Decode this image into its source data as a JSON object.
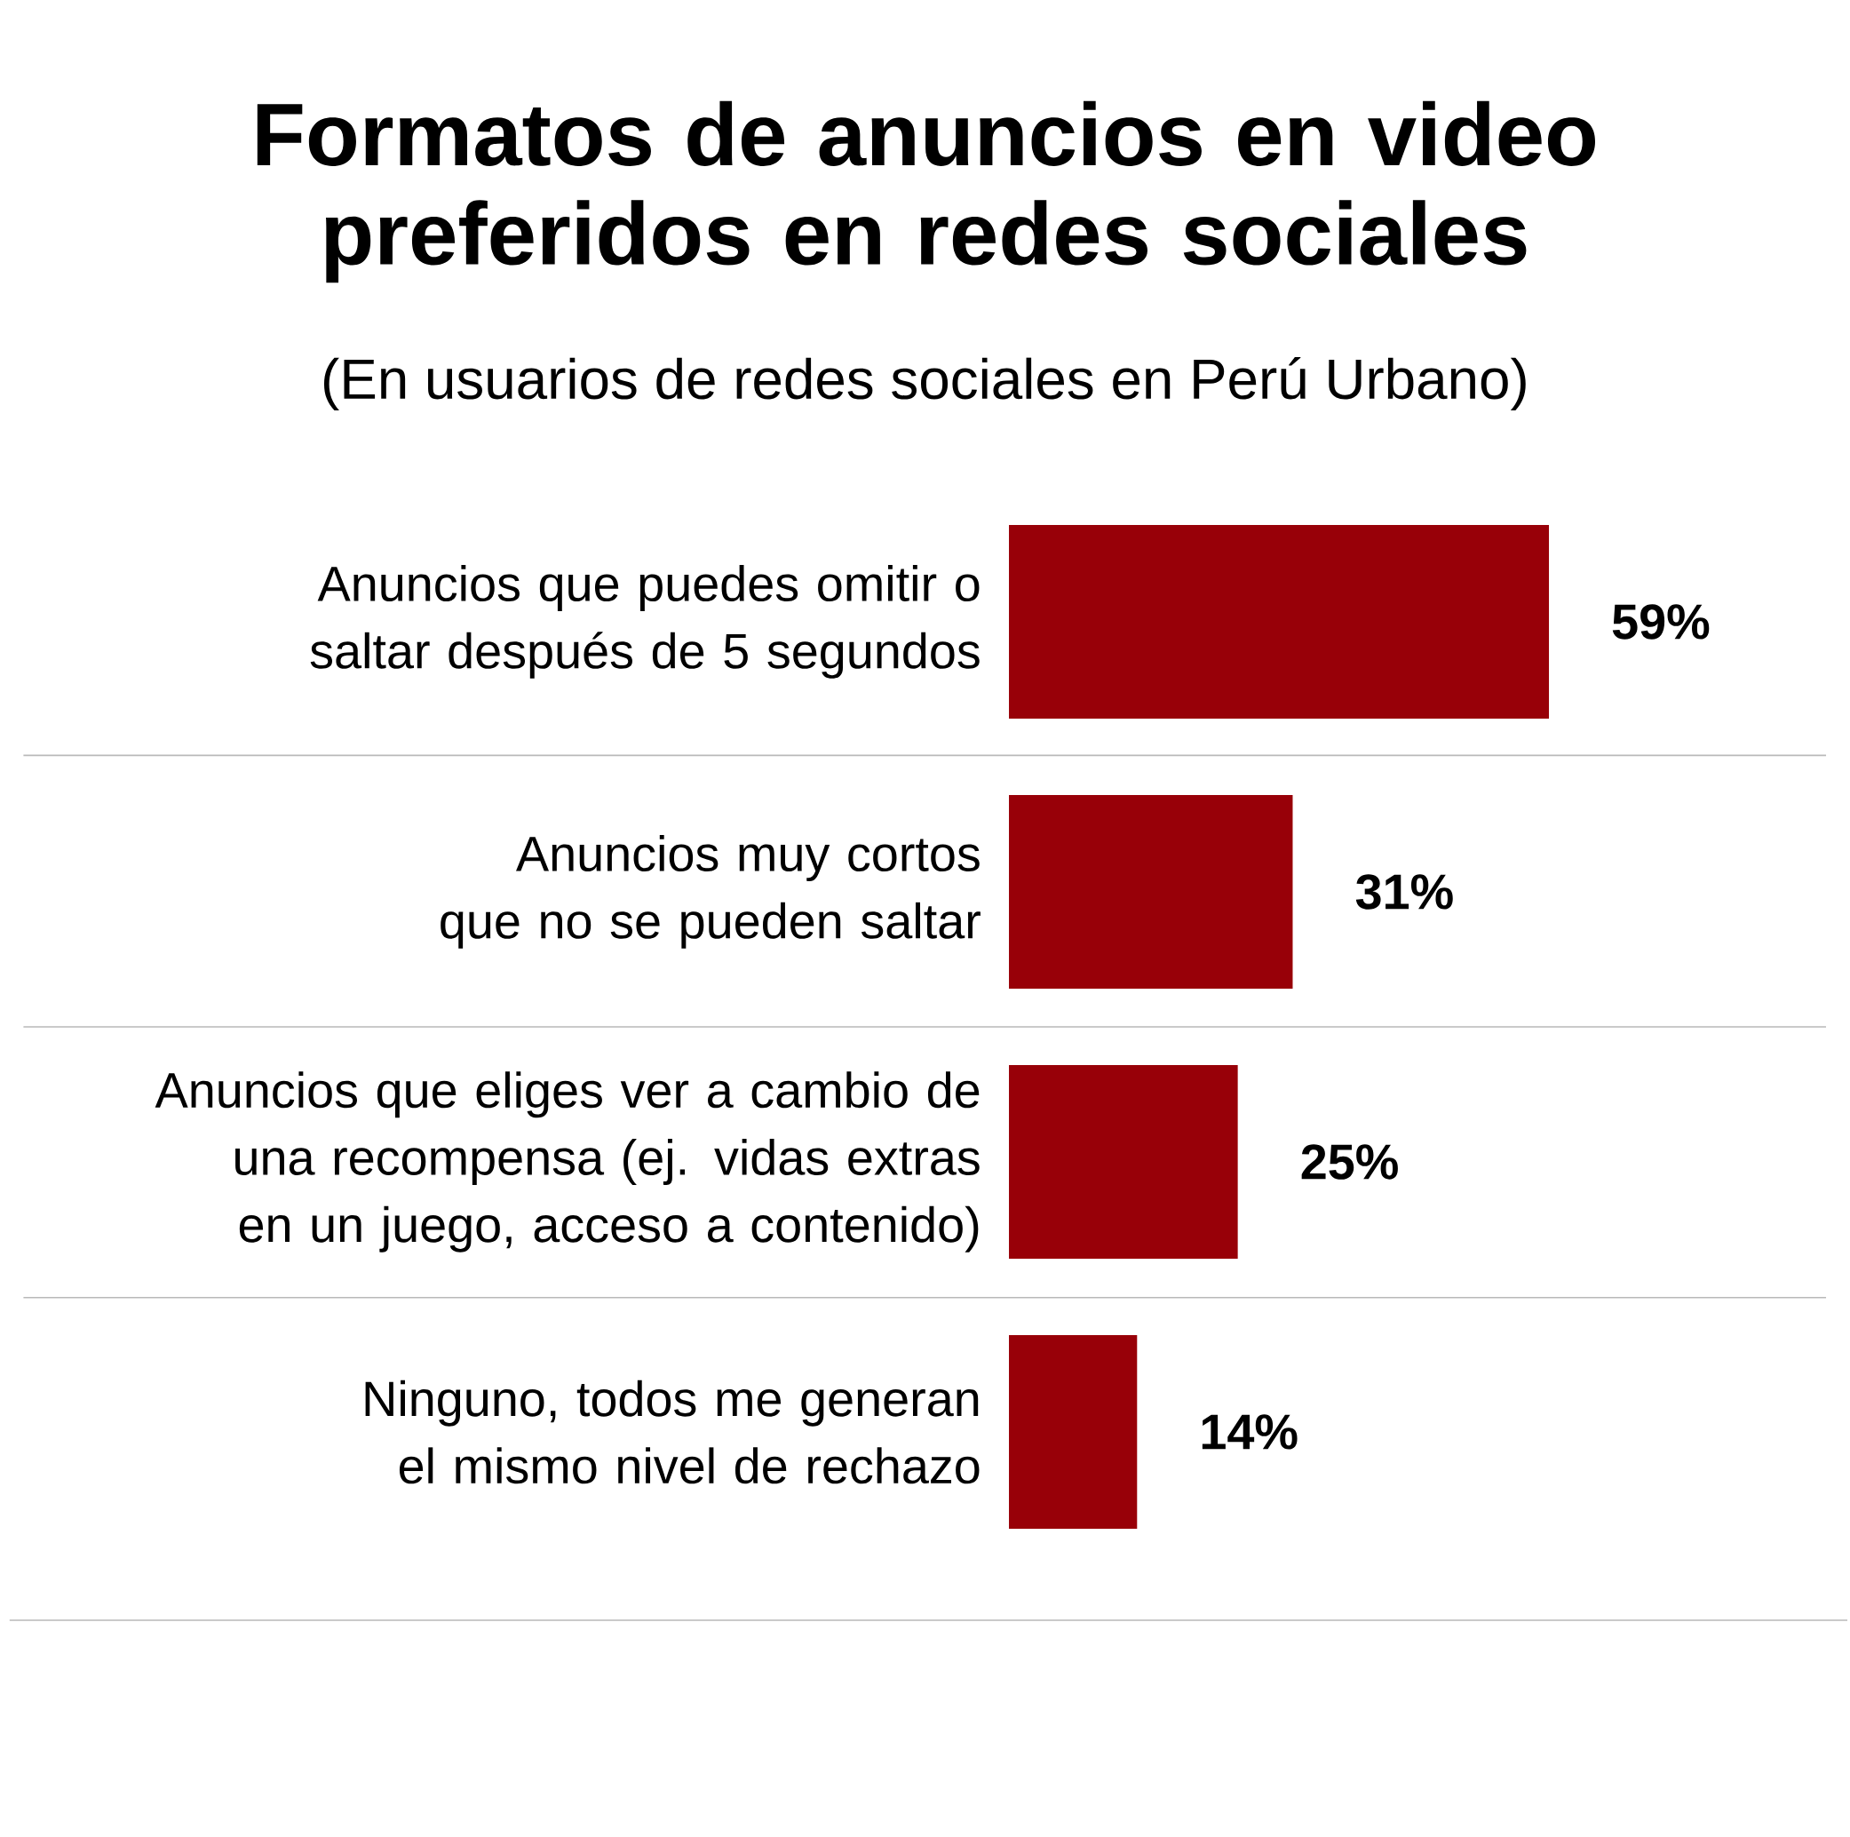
{
  "chart_data": {
    "type": "bar",
    "orientation": "horizontal",
    "title": "Formatos de anuncios en video preferidos en redes sociales",
    "subtitle": "(En usuarios de redes sociales en Perú Urbano)",
    "categories": [
      "Anuncios que puedes omitir o saltar después de 5 segundos",
      "Anuncios muy cortos que no se pueden saltar",
      "Anuncios que eliges ver a cambio de una recompensa (ej. vidas extras en un juego, acceso a contenido)",
      "Ninguno, todos me generan el mismo nivel de rechazo"
    ],
    "values": [
      59,
      31,
      25,
      14
    ],
    "value_labels": [
      "59%",
      "31%",
      "25%",
      "14%"
    ],
    "color": "#980008",
    "tick_labels": "y",
    "grid": "y"
  }
}
